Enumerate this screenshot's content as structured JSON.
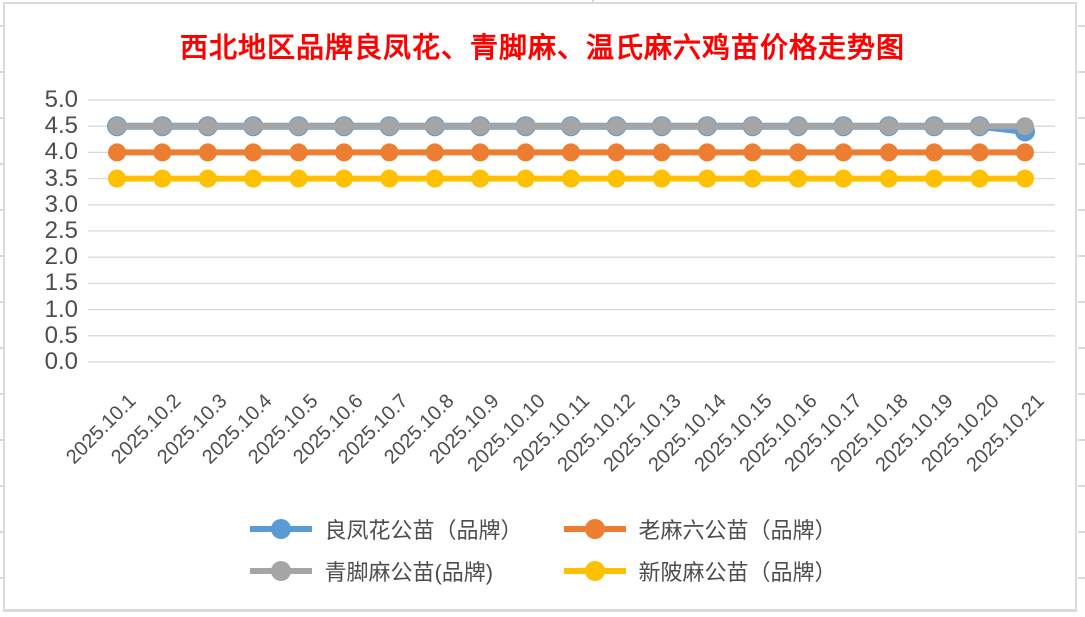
{
  "page": {
    "background_color": "#ffffff",
    "chart_border_color": "#d9d9d9"
  },
  "chart_data": {
    "type": "line",
    "title": "西北地区品牌良凤花、青脚麻、温氏麻六鸡苗价格走势图",
    "title_color": "#ff0000",
    "xlabel": "",
    "ylabel": "",
    "ylim": [
      0,
      5
    ],
    "grid": true,
    "gridline_color": "#d9d9d9",
    "axis_label_color": "#4d4d4d",
    "legend_position": "bottom",
    "y_ticks": [
      "5.0",
      "4.5",
      "4.0",
      "3.5",
      "3.0",
      "2.5",
      "2.0",
      "1.5",
      "1.0",
      "0.5",
      "0.0"
    ],
    "categories": [
      "2025.10.1",
      "2025.10.2",
      "2025.10.3",
      "2025.10.4",
      "2025.10.5",
      "2025.10.6",
      "2025.10.7",
      "2025.10.8",
      "2025.10.9",
      "2025.10.10",
      "2025.10.11",
      "2025.10.12",
      "2025.10.13",
      "2025.10.14",
      "2025.10.15",
      "2025.10.16",
      "2025.10.17",
      "2025.10.18",
      "2025.10.19",
      "2025.10.20",
      "2025.10.21"
    ],
    "series": [
      {
        "name": "良凤花公苗（品牌）",
        "color": "#5b9bd5",
        "values": [
          4.5,
          4.5,
          4.5,
          4.5,
          4.5,
          4.5,
          4.5,
          4.5,
          4.5,
          4.5,
          4.5,
          4.5,
          4.5,
          4.5,
          4.5,
          4.5,
          4.5,
          4.5,
          4.5,
          4.5,
          4.4
        ]
      },
      {
        "name": "老麻六公苗（品牌）",
        "color": "#ed7d31",
        "values": [
          4.0,
          4.0,
          4.0,
          4.0,
          4.0,
          4.0,
          4.0,
          4.0,
          4.0,
          4.0,
          4.0,
          4.0,
          4.0,
          4.0,
          4.0,
          4.0,
          4.0,
          4.0,
          4.0,
          4.0,
          4.0
        ]
      },
      {
        "name": "青脚麻公苗(品牌)",
        "color": "#a5a5a5",
        "values": [
          4.5,
          4.5,
          4.5,
          4.5,
          4.5,
          4.5,
          4.5,
          4.5,
          4.5,
          4.5,
          4.5,
          4.5,
          4.5,
          4.5,
          4.5,
          4.5,
          4.5,
          4.5,
          4.5,
          4.5,
          4.5
        ]
      },
      {
        "name": "新陂麻公苗（品牌）",
        "color": "#ffc000",
        "values": [
          3.5,
          3.5,
          3.5,
          3.5,
          3.5,
          3.5,
          3.5,
          3.5,
          3.5,
          3.5,
          3.5,
          3.5,
          3.5,
          3.5,
          3.5,
          3.5,
          3.5,
          3.5,
          3.5,
          3.5,
          3.5
        ]
      }
    ]
  }
}
